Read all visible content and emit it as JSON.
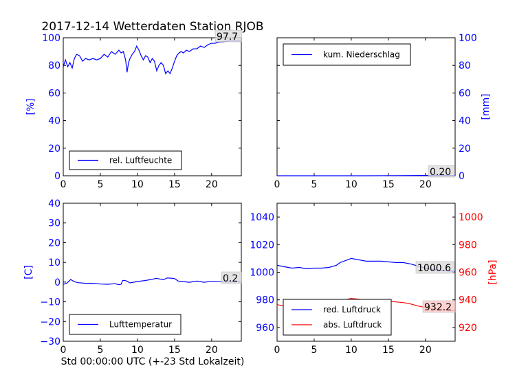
{
  "figure": {
    "title": "2017-12-14 Wetterdaten Station RJOB",
    "xlabel": "Std 00:00:00 UTC (+-23 Std Lokalzeit)"
  },
  "colors": {
    "blue": "#0000ff",
    "red": "#ff0000",
    "black": "#000000"
  },
  "chart_data": [
    {
      "type": "line",
      "id": "humidity",
      "ylabel": "[%]",
      "ylim": [
        0,
        100
      ],
      "yticks": [
        0,
        20,
        40,
        60,
        80,
        100
      ],
      "xlim": [
        0,
        24
      ],
      "xticks": [
        0,
        5,
        10,
        15,
        20
      ],
      "legend": "lower-left",
      "last_value_label": "97.7",
      "series": [
        {
          "name": "rel. Luftfeuchte",
          "color": "#0000ff",
          "x": [
            0,
            0.3,
            0.6,
            0.9,
            1.2,
            1.5,
            1.8,
            2.2,
            2.6,
            3.0,
            3.5,
            4.0,
            4.5,
            5.0,
            5.5,
            6.0,
            6.5,
            7.0,
            7.5,
            7.8,
            8.1,
            8.4,
            8.6,
            8.8,
            9.0,
            9.3,
            9.6,
            9.9,
            10.2,
            10.5,
            10.8,
            11.1,
            11.4,
            11.7,
            12.0,
            12.3,
            12.6,
            12.9,
            13.2,
            13.5,
            13.8,
            14.1,
            14.4,
            14.7,
            15.0,
            15.3,
            15.6,
            15.9,
            16.2,
            16.6,
            17.0,
            17.5,
            18.0,
            18.5,
            19.0,
            19.5,
            20.0,
            20.5,
            21.0,
            21.5,
            22.0,
            22.5,
            23.0,
            23.5,
            24.0
          ],
          "y": [
            79,
            84,
            79,
            82,
            78,
            85,
            88,
            87,
            83,
            85,
            84,
            85,
            84,
            85,
            88,
            86,
            90,
            88,
            91,
            89,
            90,
            84,
            75,
            82,
            85,
            88,
            90,
            94,
            91,
            87,
            84,
            87,
            86,
            82,
            85,
            83,
            76,
            80,
            82,
            80,
            74,
            76,
            74,
            78,
            83,
            87,
            89,
            90,
            89,
            91,
            90,
            92,
            92,
            94,
            93,
            95,
            96,
            96,
            97,
            97,
            97.5,
            97.7,
            97.7,
            97.7,
            97.7
          ]
        }
      ]
    },
    {
      "type": "line",
      "id": "precip",
      "ylabel": "[mm]",
      "ylim": [
        0,
        100
      ],
      "yticks": [
        0,
        20,
        40,
        60,
        80,
        100
      ],
      "xlim": [
        0,
        24
      ],
      "xticks": [
        0,
        5,
        10,
        15,
        20
      ],
      "legend": "upper-left",
      "last_value_label": "0.20",
      "series": [
        {
          "name": "kum. Niederschlag",
          "color": "#0000ff",
          "x": [
            0,
            4,
            8,
            12,
            16,
            20,
            22,
            24
          ],
          "y": [
            0,
            0,
            0,
            0,
            0.1,
            0.2,
            0.2,
            0.2
          ]
        }
      ]
    },
    {
      "type": "line",
      "id": "temperature",
      "ylabel": "[C]",
      "ylim": [
        -30,
        40
      ],
      "yticks": [
        -30,
        -20,
        -10,
        0,
        10,
        20,
        30,
        40
      ],
      "xlim": [
        0,
        24
      ],
      "xticks": [
        0,
        5,
        10,
        15,
        20
      ],
      "legend": "lower-left",
      "last_value_label": "0.2",
      "series": [
        {
          "name": "Lufttemperatur",
          "color": "#0000ff",
          "x": [
            0,
            0.5,
            1.0,
            1.5,
            2.0,
            3.0,
            4.0,
            5.0,
            6.0,
            7.0,
            7.5,
            7.8,
            8.0,
            8.2,
            8.5,
            9.0,
            10.0,
            11.0,
            12.0,
            12.5,
            13.0,
            13.5,
            14.0,
            14.5,
            15.0,
            15.5,
            16.0,
            17.0,
            18.0,
            19.0,
            20.0,
            21.0,
            22.0,
            23.0,
            24.0
          ],
          "y": [
            -1.2,
            -0.5,
            1.3,
            0.2,
            -0.3,
            -0.6,
            -0.6,
            -1.0,
            -1.1,
            -0.8,
            -1.3,
            -1.1,
            0.8,
            0.9,
            0.6,
            -0.4,
            0.3,
            0.8,
            1.4,
            1.9,
            1.6,
            1.2,
            2.1,
            2.0,
            1.8,
            0.5,
            0.3,
            -0.1,
            0.5,
            -0.1,
            0.4,
            0.2,
            0.1,
            0.2,
            0.2
          ]
        }
      ]
    },
    {
      "type": "line",
      "id": "pressure",
      "ylabel_left": "",
      "ylabel_right": "[hPa]",
      "ylim_left": [
        950,
        1050
      ],
      "yticks_left": [
        960,
        980,
        1000,
        1020,
        1040
      ],
      "ylim_right": [
        910,
        1010
      ],
      "yticks_right": [
        920,
        940,
        960,
        980,
        1000
      ],
      "xlim": [
        0,
        24
      ],
      "xticks": [
        0,
        5,
        10,
        15,
        20
      ],
      "legend": "lower-left",
      "last_value_labels": [
        "1000.6",
        "932.2"
      ],
      "series": [
        {
          "name": "red. Luftdruck",
          "color": "#0000ff",
          "axis": "left",
          "x": [
            0,
            1,
            2,
            3,
            4,
            5,
            6,
            7,
            8,
            8.5,
            9,
            9.5,
            10,
            11,
            12,
            13,
            14,
            15,
            16,
            17,
            18,
            19,
            20,
            21,
            22,
            23,
            24
          ],
          "y": [
            1005,
            1004,
            1003,
            1003.5,
            1002.5,
            1003,
            1003,
            1003.5,
            1005,
            1007,
            1008,
            1009,
            1010,
            1009,
            1008,
            1008,
            1008,
            1007.5,
            1007,
            1007,
            1006,
            1004.5,
            1003,
            1002,
            1001.5,
            1001,
            1000.6
          ]
        },
        {
          "name": "abs. Luftdruck",
          "color": "#ff0000",
          "axis": "right",
          "x": [
            0,
            1,
            2,
            3,
            4,
            5,
            6,
            7,
            8,
            8.5,
            9,
            9.5,
            10,
            11,
            12,
            13,
            14,
            15,
            16,
            17,
            18,
            19,
            20,
            21,
            22,
            23,
            24
          ],
          "y": [
            936.5,
            935.5,
            934.5,
            935,
            934,
            934.5,
            934.5,
            935,
            936.5,
            938.5,
            939.5,
            940.5,
            941,
            940.5,
            939.5,
            939.5,
            939.5,
            939,
            938.5,
            938,
            937,
            935.5,
            934.5,
            933.5,
            933,
            932.5,
            932.2
          ]
        }
      ]
    }
  ]
}
